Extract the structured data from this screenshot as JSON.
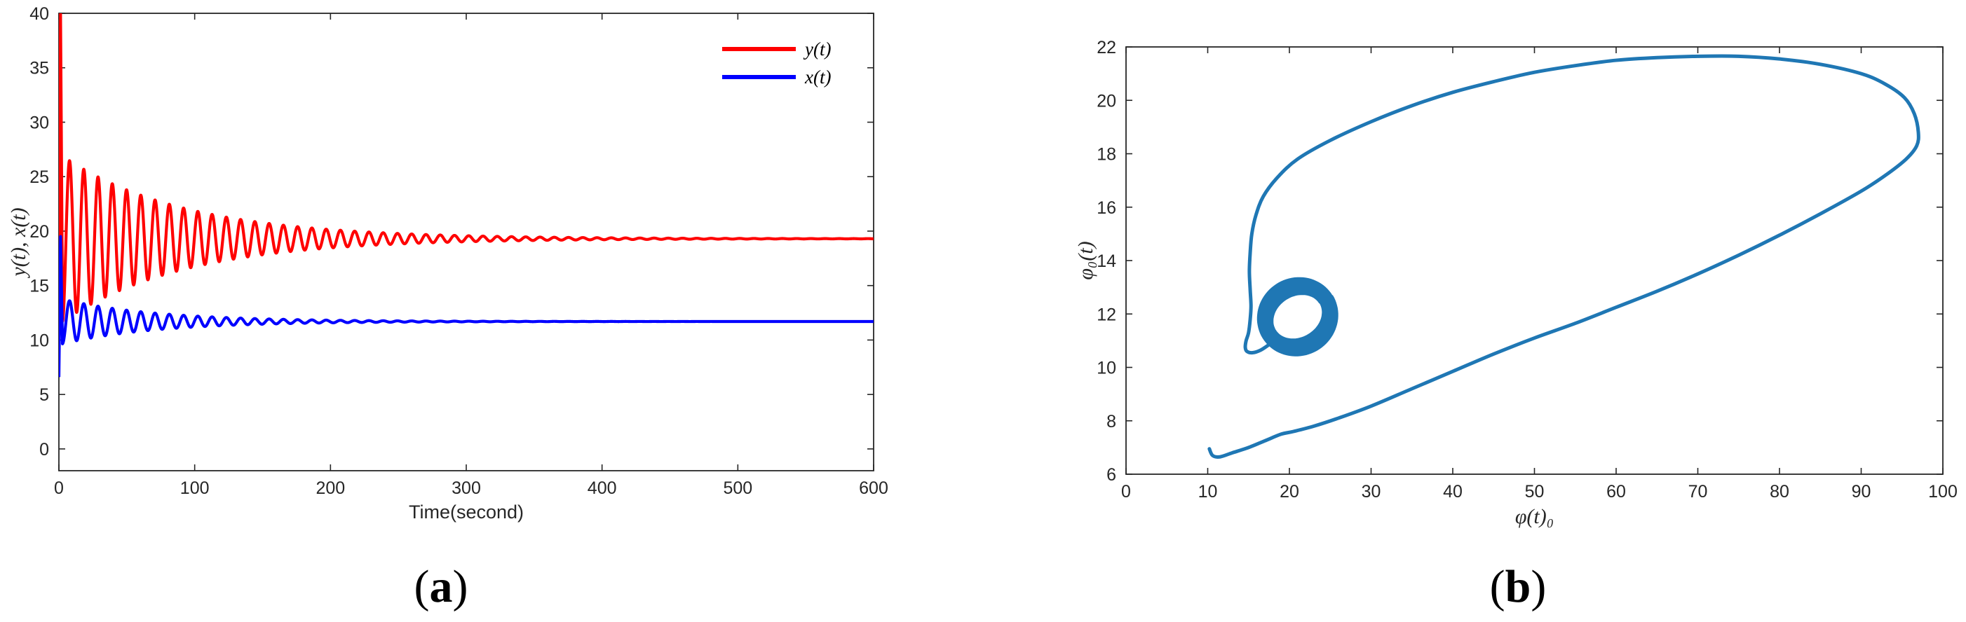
{
  "chart_data": [
    {
      "type": "line",
      "panel_label": "(a)",
      "panel_letter": "a",
      "xlabel": "Time(second)",
      "ylabel": "y(t), x(t)",
      "xlim": [
        0,
        600
      ],
      "ylim": [
        -2,
        40
      ],
      "xticks": [
        "0",
        "100",
        "200",
        "300",
        "400",
        "500",
        "600"
      ],
      "yticks": [
        "0",
        "5",
        "10",
        "15",
        "20",
        "25",
        "30",
        "35",
        "40"
      ],
      "grid": false,
      "legend_position": "top-right",
      "series": [
        {
          "name": "y(t)",
          "color": "#ff0000",
          "equilibrium": 19.3,
          "initial": 10.0,
          "initial_spike_peak": 40,
          "first_peak": 29.2,
          "first_trough": 14.0,
          "period": 10.5,
          "decay_time": 90
        },
        {
          "name": "x(t)",
          "color": "#0000ff",
          "equilibrium": 11.7,
          "initial": 6.6,
          "initial_spike_peak": 19.5,
          "first_peak": 14.2,
          "first_trough": 10.1,
          "period": 10.5,
          "decay_time": 70
        }
      ]
    },
    {
      "type": "line",
      "panel_label": "(b)",
      "panel_letter": "b",
      "xlabel": "φ(t)₀",
      "ylabel": "φ₀(t)",
      "xlim": [
        0,
        100
      ],
      "ylim": [
        6,
        22
      ],
      "xticks": [
        "0",
        "10",
        "20",
        "30",
        "40",
        "50",
        "60",
        "70",
        "80",
        "90",
        "100"
      ],
      "yticks": [
        "6",
        "8",
        "10",
        "12",
        "14",
        "16",
        "18",
        "20",
        "22"
      ],
      "grid": false,
      "series": [
        {
          "name": "",
          "color": "#1f77b4",
          "x": [
            10.2,
            10.6,
            11.5,
            13,
            15,
            17,
            19,
            20.5,
            23,
            26,
            30,
            35,
            40,
            45,
            50,
            55,
            60,
            65,
            70,
            75,
            80,
            85,
            90,
            93,
            95.5,
            96.8,
            97,
            96.5,
            95.3,
            93,
            90,
            85,
            80,
            75,
            70,
            65,
            60,
            55,
            50,
            45,
            40,
            35,
            30,
            25,
            21,
            18.5,
            16.8,
            15.9,
            15.4,
            15.2,
            15.1,
            15.2,
            15.3,
            15.2,
            15,
            14.7,
            14.6,
            14.8,
            15.5,
            16.5,
            17.5
          ],
          "y": [
            6.95,
            6.7,
            6.65,
            6.8,
            7.0,
            7.25,
            7.5,
            7.6,
            7.8,
            8.1,
            8.55,
            9.2,
            9.85,
            10.5,
            11.1,
            11.65,
            12.25,
            12.85,
            13.5,
            14.2,
            14.95,
            15.75,
            16.6,
            17.2,
            17.8,
            18.3,
            18.8,
            19.5,
            20.1,
            20.6,
            21.0,
            21.35,
            21.55,
            21.65,
            21.65,
            21.6,
            21.5,
            21.3,
            21.05,
            20.7,
            20.3,
            19.8,
            19.2,
            18.5,
            17.8,
            17.1,
            16.4,
            15.7,
            15.0,
            14.3,
            13.6,
            12.9,
            12.3,
            11.8,
            11.3,
            11.0,
            10.75,
            10.6,
            10.55,
            10.65,
            10.85
          ]
        }
      ],
      "attractor": {
        "center": [
          21.0,
          11.9
        ],
        "outer_x_extent": [
          16.2,
          26.0
        ],
        "outer_y_extent": [
          10.7,
          13.55
        ],
        "inner_x_extent": [
          17.5,
          24.0
        ],
        "inner_y_extent": [
          11.3,
          12.9
        ]
      }
    }
  ]
}
